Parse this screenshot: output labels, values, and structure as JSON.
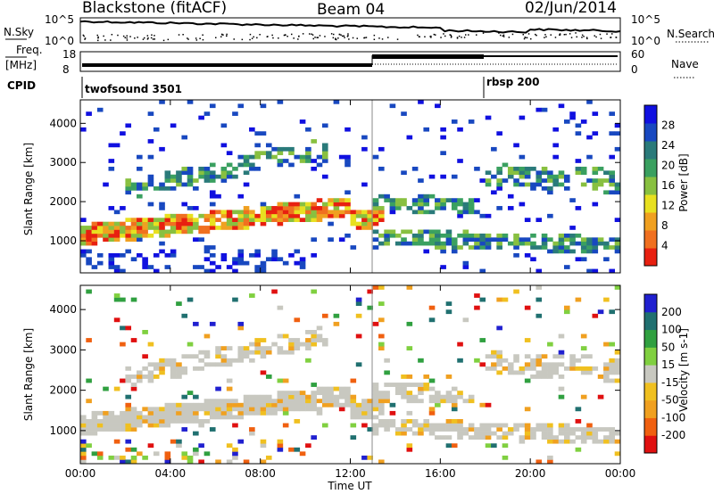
{
  "header": {
    "station": "Blackstone (fitACF)",
    "beam": "Beam 04",
    "date": "02/Jun/2014"
  },
  "noise_panel": {
    "left_label": "N.Sky",
    "right_label": "N.Search",
    "ticks": [
      "10^5",
      "10^0"
    ]
  },
  "freq_panel": {
    "left_label_top": "Freq.",
    "left_label_bottom": "[MHz]",
    "left_ticks": [
      "18",
      "8"
    ],
    "right_label": "Nave",
    "right_ticks": [
      "60",
      "0"
    ]
  },
  "cpid_panel": {
    "label": "CPID",
    "programs": [
      {
        "name": "twofsound 3501",
        "start_hour": 0
      },
      {
        "name": "rbsp 200",
        "start_hour": 18
      }
    ]
  },
  "chart_data": [
    {
      "type": "heatmap",
      "name": "power",
      "ylabel": "Slant Range [km]",
      "ylim": [
        180,
        4600
      ],
      "yticks": [
        1000,
        2000,
        3000,
        4000
      ],
      "colorbar_label": "Power [dB]",
      "colorbar_ticks": [
        "28",
        "24",
        "20",
        "16",
        "12",
        "8",
        "4"
      ],
      "colorscale": [
        "#1010e0",
        "#1848c0",
        "#2a7a7a",
        "#3aa060",
        "#88c040",
        "#e8e020",
        "#f0a020",
        "#f07020",
        "#e82010"
      ]
    },
    {
      "type": "heatmap",
      "name": "velocity",
      "ylabel": "Slant Range [km]",
      "ylim": [
        180,
        4600
      ],
      "yticks": [
        1000,
        2000,
        3000,
        4000
      ],
      "colorbar_label": "Velocity [m s-1]",
      "colorbar_ticks": [
        "200",
        "100",
        "50",
        "15",
        "-15",
        "-50",
        "-100",
        "-200"
      ],
      "colorscale": [
        "#2020d0",
        "#207070",
        "#30a040",
        "#80d040",
        "#c8c8c0",
        "#f0c020",
        "#f0a020",
        "#f06010",
        "#e01010"
      ]
    }
  ],
  "xaxis": {
    "label": "Time UT",
    "ticks": [
      "00:00",
      "04:00",
      "08:00",
      "12:00",
      "16:00",
      "20:00",
      "00:00"
    ]
  }
}
